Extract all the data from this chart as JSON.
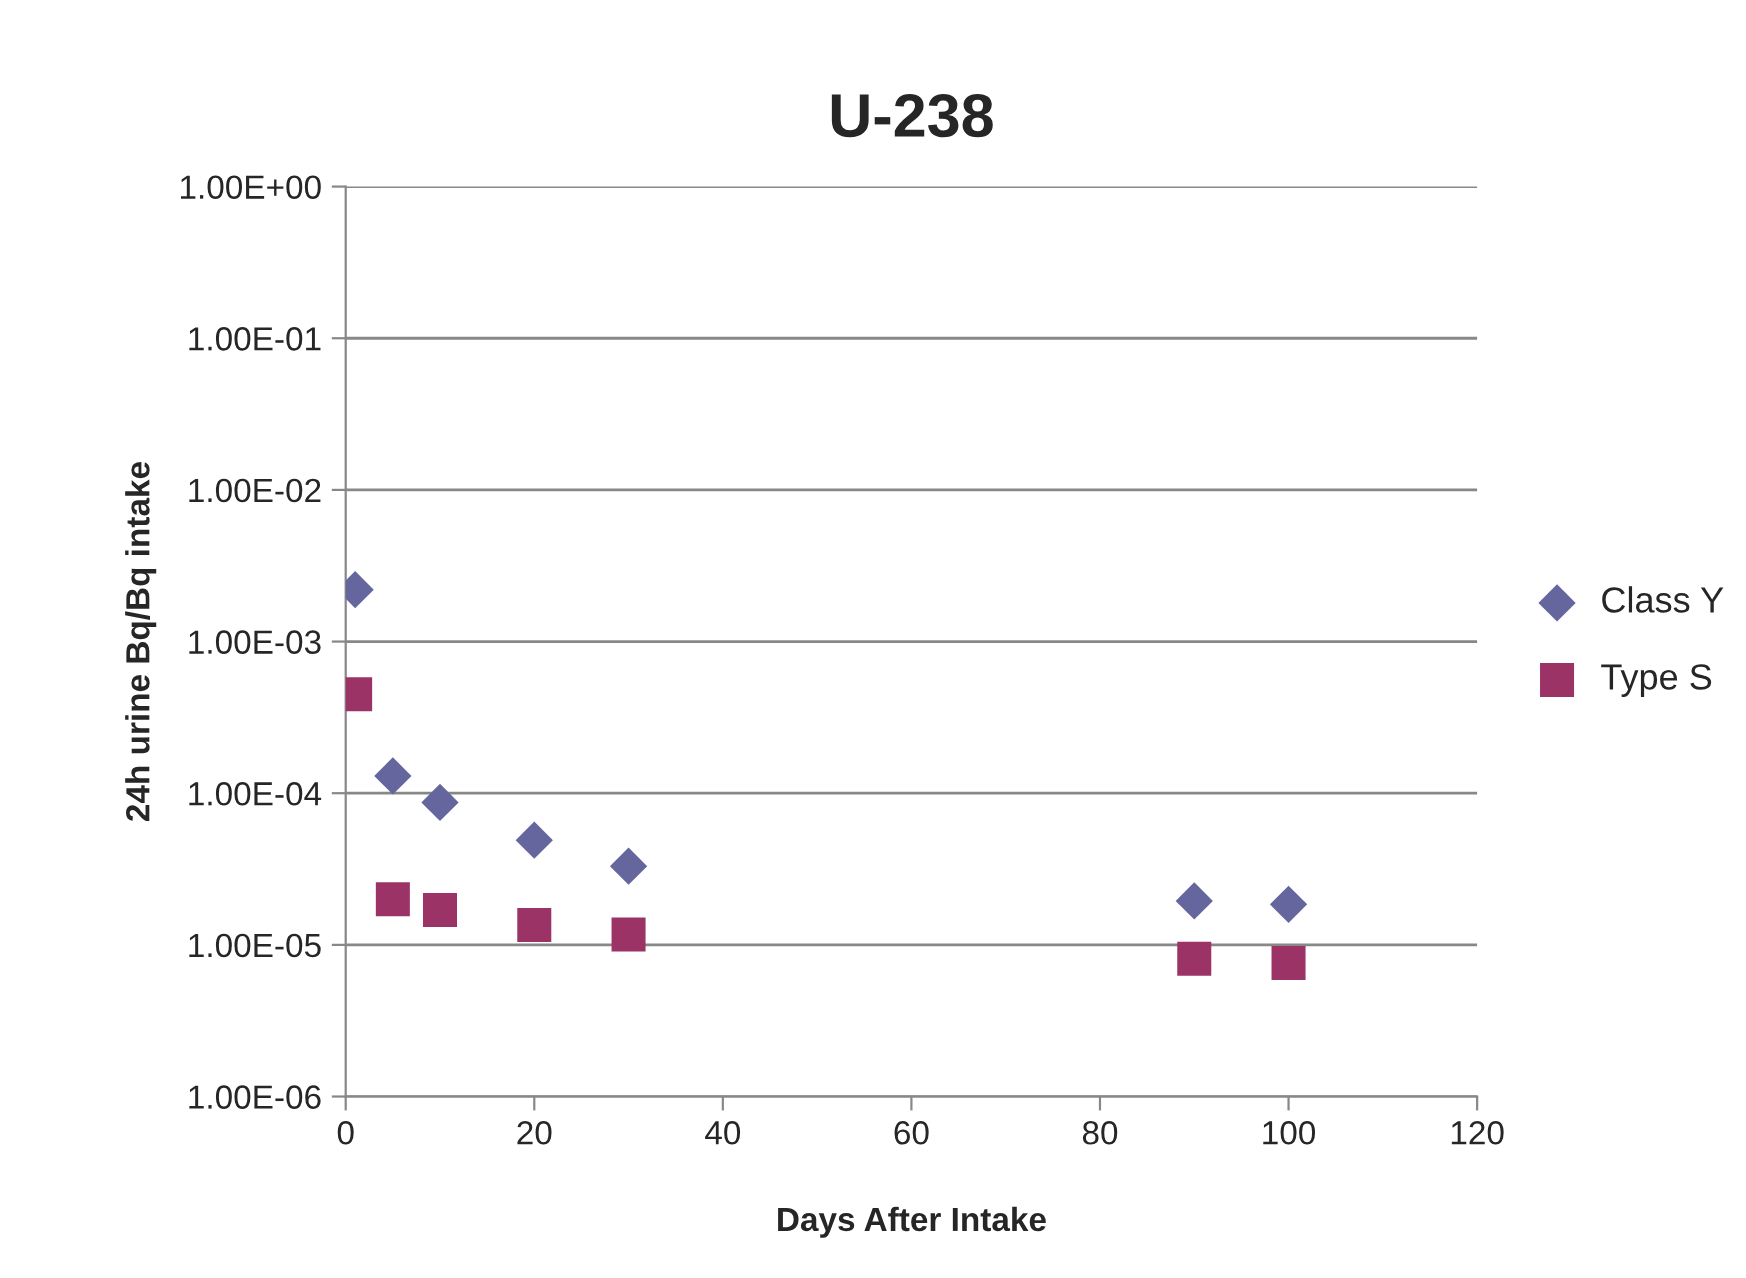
{
  "chart_data": {
    "type": "scatter",
    "title": "U-238",
    "xlabel": "Days After Intake",
    "ylabel": "24h urine Bq/Bq intake",
    "x": [
      1,
      5,
      10,
      20,
      30,
      90,
      100
    ],
    "series": [
      {
        "name": "Class Y",
        "color": "#66669f",
        "marker": "diamond",
        "values": [
          0.0022,
          0.00013,
          8.7e-05,
          4.9e-05,
          3.3e-05,
          1.95e-05,
          1.85e-05
        ]
      },
      {
        "name": "Type S",
        "color": "#9b3366",
        "marker": "square",
        "values": [
          0.00045,
          2e-05,
          1.7e-05,
          1.35e-05,
          1.17e-05,
          8.1e-06,
          7.6e-06
        ]
      }
    ],
    "log": "y",
    "xlim": [
      0,
      120
    ],
    "xticks": [
      0,
      20,
      40,
      60,
      80,
      100,
      120
    ],
    "ylim": [
      1e-06,
      1
    ],
    "yticks": [
      {
        "value": 1e-06,
        "label": "1.00E-06"
      },
      {
        "value": 1e-05,
        "label": "1.00E-05"
      },
      {
        "value": 0.0001,
        "label": "1.00E-04"
      },
      {
        "value": 0.001,
        "label": "1.00E-03"
      },
      {
        "value": 0.01,
        "label": "1.00E-02"
      },
      {
        "value": 0.1,
        "label": "1.00E-01"
      },
      {
        "value": 1,
        "label": "1.00E+00"
      }
    ],
    "grid": "y",
    "legend": "right"
  }
}
